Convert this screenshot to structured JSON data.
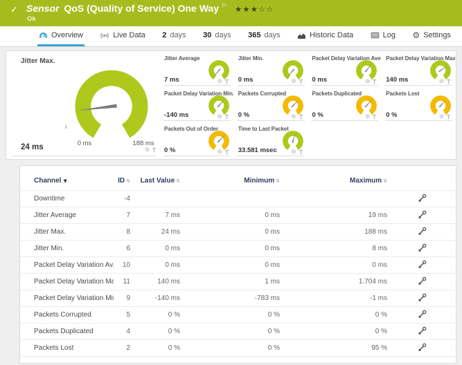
{
  "icons": {
    "check": "✓",
    "flag": "⚐",
    "gear": "⚙",
    "sort_both": "⇅",
    "sort_desc": "▼",
    "avg": "x̄"
  },
  "header": {
    "sensor_label": "Sensor",
    "title": "QoS (Quality of Service) One Way",
    "stars": "★★★☆☆",
    "status": "Ok"
  },
  "tabs": [
    {
      "label": "Overview",
      "icon": "gauge-icon",
      "active": true
    },
    {
      "label": "Live Data",
      "icon": "broadcast-icon",
      "active": false
    },
    {
      "number": "2",
      "word": "days"
    },
    {
      "number": "30",
      "word": "days"
    },
    {
      "number": "365",
      "word": "days"
    },
    {
      "label": "Historic Data",
      "icon": "area-chart-icon",
      "active": false
    },
    {
      "label": "Log",
      "icon": "log-icon",
      "active": false
    },
    {
      "label": "Settings",
      "icon": "gear-icon",
      "active": false
    }
  ],
  "colors": {
    "green": "#aec91c",
    "yellow": "#f3ba00",
    "header_bg": "#a6bc1e",
    "accent_blue": "#3aa3d8",
    "needle": "#7d7d7d"
  },
  "big_gauge": {
    "title": "Jitter Max.",
    "value": "24 ms",
    "min_label": "0 ms",
    "max_label": "188 ms",
    "color": "#aec91c",
    "needle_deg": 263
  },
  "small_gauges": [
    {
      "title": "Jitter Average",
      "value": "7 ms",
      "color": "green",
      "needle_deg": 220
    },
    {
      "title": "Jitter Min.",
      "value": "0 ms",
      "color": "green",
      "needle_deg": 222
    },
    {
      "title": "Packet Delay Variation Average",
      "value": "0 ms",
      "color": "green",
      "needle_deg": 38
    },
    {
      "title": "Packet Delay Variation Max.",
      "value": "140 ms",
      "color": "green",
      "needle_deg": 55
    },
    {
      "title": "Packet Delay Variation Min.",
      "value": "-140 ms",
      "color": "green",
      "needle_deg": 42
    },
    {
      "title": "Packets Corrupted",
      "value": "0 %",
      "color": "yellow",
      "needle_deg": 45
    },
    {
      "title": "Packets Duplicated",
      "value": "0 %",
      "color": "yellow",
      "needle_deg": 42
    },
    {
      "title": "Packets Lost",
      "value": "0 %",
      "color": "yellow",
      "needle_deg": 42
    },
    {
      "title": "Packets Out of Order",
      "value": "0 %",
      "color": "yellow",
      "needle_deg": 45
    },
    {
      "title": "Time to Last Packet",
      "value": "33.581 msec",
      "color": "green",
      "needle_deg": 15
    }
  ],
  "table": {
    "columns": [
      "Channel",
      "ID",
      "Last Value",
      "Minimum",
      "Maximum"
    ],
    "rows": [
      {
        "channel": "Downtime",
        "id": "-4",
        "last": "",
        "min": "",
        "max": ""
      },
      {
        "channel": "Jitter Average",
        "id": "7",
        "last": "7 ms",
        "min": "0 ms",
        "max": "19 ms"
      },
      {
        "channel": "Jitter Max.",
        "id": "8",
        "last": "24 ms",
        "min": "0 ms",
        "max": "188 ms"
      },
      {
        "channel": "Jitter Min.",
        "id": "6",
        "last": "0 ms",
        "min": "0 ms",
        "max": "8 ms"
      },
      {
        "channel": "Packet Delay Variation Av...",
        "id": "10",
        "last": "0 ms",
        "min": "0 ms",
        "max": "0 ms"
      },
      {
        "channel": "Packet Delay Variation Max.",
        "id": "11",
        "last": "140 ms",
        "min": "1 ms",
        "max": "1.704 ms"
      },
      {
        "channel": "Packet Delay Variation Min.",
        "id": "9",
        "last": "-140 ms",
        "min": "-783 ms",
        "max": "-1 ms"
      },
      {
        "channel": "Packets Corrupted",
        "id": "5",
        "last": "0 %",
        "min": "0 %",
        "max": "0 %"
      },
      {
        "channel": "Packets Duplicated",
        "id": "4",
        "last": "0 %",
        "min": "0 %",
        "max": "0 %"
      },
      {
        "channel": "Packets Lost",
        "id": "2",
        "last": "0 %",
        "min": "0 %",
        "max": "95 %"
      }
    ]
  }
}
